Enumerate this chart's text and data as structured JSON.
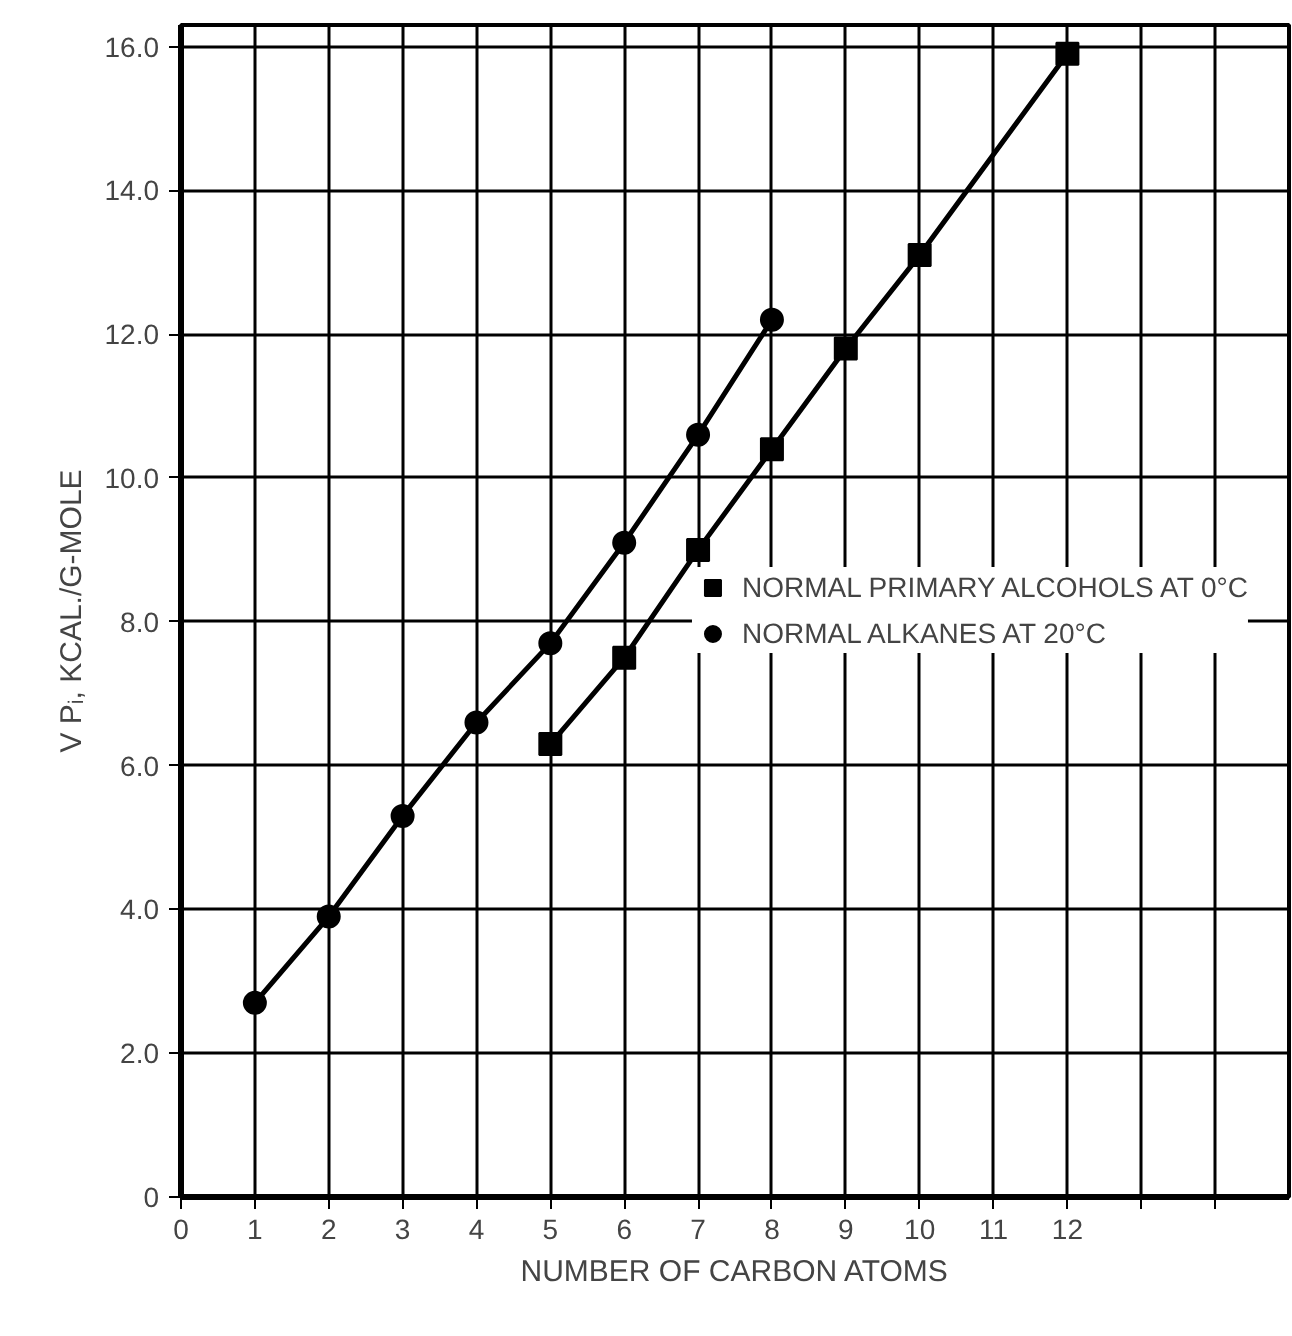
{
  "chart_data": {
    "type": "line",
    "xlabel": "NUMBER OF CARBON ATOMS",
    "ylabel": "V Pᵢ, KCAL./G-MOLE",
    "xlim": [
      0,
      15
    ],
    "ylim": [
      0,
      16.3
    ],
    "xticks": [
      0,
      1,
      2,
      3,
      4,
      5,
      6,
      7,
      8,
      9,
      10,
      11,
      12,
      {
        "value": 13,
        "label": null
      },
      {
        "value": 14,
        "label": null
      }
    ],
    "yticks": [
      0,
      {
        "value": 2,
        "label": "2.0"
      },
      {
        "value": 4,
        "label": "4.0"
      },
      {
        "value": 6,
        "label": "6.0"
      },
      {
        "value": 8,
        "label": "8.0"
      },
      {
        "value": 10,
        "label": "10.0"
      },
      {
        "value": 12,
        "label": "12.0"
      },
      {
        "value": 14,
        "label": "14.0"
      },
      {
        "value": 16,
        "label": "16.0"
      }
    ],
    "grid": true,
    "legend": "right",
    "line_style": "solid",
    "series": [
      {
        "name": "NORMAL PRIMARY ALCOHOLS AT 0°C",
        "color": "#000000",
        "marker": "square",
        "x": [
          5,
          6,
          7,
          8,
          9,
          10,
          12
        ],
        "values": [
          6.3,
          7.5,
          9.0,
          10.4,
          11.8,
          13.1,
          15.9
        ]
      },
      {
        "name": "NORMAL ALKANES AT 20°C",
        "color": "#000000",
        "marker": "circle",
        "x": [
          1,
          2,
          3,
          4,
          5,
          6,
          7,
          8
        ],
        "values": [
          2.7,
          3.9,
          5.3,
          6.6,
          7.7,
          9.1,
          10.6,
          12.2
        ]
      }
    ]
  }
}
